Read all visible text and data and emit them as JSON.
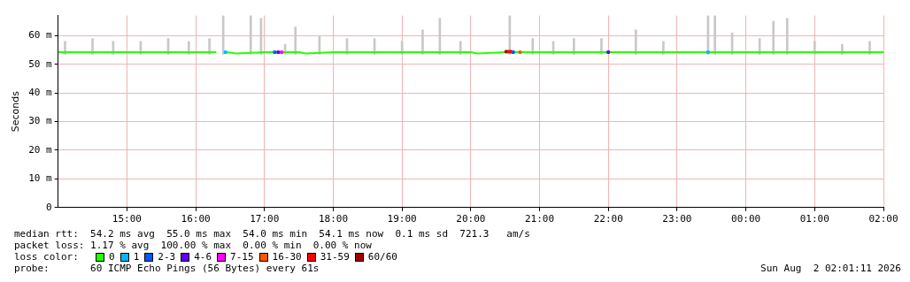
{
  "chart_data": {
    "type": "line",
    "ylabel": "Seconds",
    "xlim": [
      "2026-08-01T14:00",
      "2026-08-02T02:00"
    ],
    "xticks": [
      {
        "value": "2026-08-01T15:00",
        "label": "15:00"
      },
      {
        "value": "2026-08-01T16:00",
        "label": "16:00"
      },
      {
        "value": "2026-08-01T17:00",
        "label": "17:00"
      },
      {
        "value": "2026-08-01T18:00",
        "label": "18:00"
      },
      {
        "value": "2026-08-01T19:00",
        "label": "19:00"
      },
      {
        "value": "2026-08-01T20:00",
        "label": "20:00"
      },
      {
        "value": "2026-08-01T21:00",
        "label": "21:00"
      },
      {
        "value": "2026-08-01T22:00",
        "label": "22:00"
      },
      {
        "value": "2026-08-01T23:00",
        "label": "23:00"
      },
      {
        "value": "2026-08-02T00:00",
        "label": "00:00"
      },
      {
        "value": "2026-08-02T01:00",
        "label": "01:00"
      },
      {
        "value": "2026-08-02T02:00",
        "label": "02:00"
      }
    ],
    "ylim": [
      0,
      67
    ],
    "yticks": [
      0,
      {
        "value": 10,
        "label": "10 m"
      },
      {
        "value": 20,
        "label": "20 m"
      },
      {
        "value": 30,
        "label": "30 m"
      },
      {
        "value": 40,
        "label": "40 m"
      },
      {
        "value": 50,
        "label": "50 m"
      },
      {
        "value": 60,
        "label": "60 m"
      }
    ],
    "grid": true,
    "legend": "bottom",
    "legend_title": "loss color:",
    "annotations": [
      "median rtt:  54.2 ms avg  55.0 ms max  54.0 ms min  54.1 ms now  0.1 ms sd  721.3   am/s",
      "packet loss: 1.17 % avg  100.00 % max  0.00 % min  0.00 % now",
      "probe:       60 ICMP Echo Pings (56 Bytes) every 61s",
      "Sun Aug  2 02:01:11 2026"
    ],
    "series": [
      {
        "type": "bar",
        "color": "#c8c8c8",
        "x": [
          "2026-08-01T14:06",
          "2026-08-01T14:30",
          "2026-08-01T14:48",
          "2026-08-01T15:12",
          "2026-08-01T15:36",
          "2026-08-01T15:54",
          "2026-08-01T16:12",
          "2026-08-01T16:24",
          "2026-08-01T16:48",
          "2026-08-01T16:57",
          "2026-08-01T17:18",
          "2026-08-01T17:27",
          "2026-08-01T17:48",
          "2026-08-01T18:12",
          "2026-08-01T18:36",
          "2026-08-01T19:00",
          "2026-08-01T19:18",
          "2026-08-01T19:33",
          "2026-08-01T19:51",
          "2026-08-01T20:34",
          "2026-08-01T20:54",
          "2026-08-01T21:12",
          "2026-08-01T21:30",
          "2026-08-01T21:54",
          "2026-08-01T22:24",
          "2026-08-01T22:48",
          "2026-08-01T23:27",
          "2026-08-01T23:33",
          "2026-08-01T23:48",
          "2026-08-02T00:12",
          "2026-08-02T00:24",
          "2026-08-02T00:36",
          "2026-08-02T01:00",
          "2026-08-02T01:24",
          "2026-08-02T01:48"
        ],
        "base": [
          53.5,
          53.5,
          53.5,
          53.5,
          53.5,
          53.5,
          53.5,
          53.5,
          53.5,
          53.5,
          53.5,
          53.5,
          53.5,
          53.5,
          53.5,
          53.5,
          53.5,
          53.5,
          53.5,
          53.5,
          53.5,
          53.5,
          53.5,
          53.5,
          53.5,
          53.5,
          53.5,
          53.5,
          53.5,
          53.5,
          53.5,
          53.5,
          53.5,
          53.5,
          53.5
        ],
        "values": [
          4.5,
          5.5,
          4.5,
          4.5,
          5.5,
          4.5,
          5.5,
          13.5,
          13.5,
          12.5,
          3.5,
          9.5,
          6.5,
          5.5,
          5.5,
          4.5,
          8.5,
          12.5,
          4.5,
          13.5,
          5.5,
          4.5,
          5.5,
          5.5,
          8.5,
          4.5,
          13.5,
          13.5,
          7.5,
          5.5,
          11.5,
          12.5,
          4.5,
          3.5,
          4.5
        ]
      },
      {
        "name": "0",
        "marker": "none",
        "color": "#26ff00",
        "x": [
          "2026-08-01T14:00",
          "2026-08-01T14:30",
          "2026-08-01T15:00",
          "2026-08-01T15:30",
          "2026-08-01T16:00",
          "2026-08-01T16:18",
          "2026-08-01T16:21",
          "2026-08-01T16:27",
          "2026-08-01T16:36",
          "2026-08-01T17:00",
          "2026-08-01T17:30",
          "2026-08-01T17:36",
          "2026-08-01T18:00",
          "2026-08-01T18:30",
          "2026-08-01T19:00",
          "2026-08-01T19:30",
          "2026-08-01T20:00",
          "2026-08-01T20:06",
          "2026-08-01T20:30",
          "2026-08-01T21:00",
          "2026-08-01T21:30",
          "2026-08-01T22:00",
          "2026-08-01T22:30",
          "2026-08-01T23:00",
          "2026-08-01T23:30",
          "2026-08-02T00:00",
          "2026-08-02T00:30",
          "2026-08-02T01:00",
          "2026-08-02T01:30",
          "2026-08-02T02:00"
        ],
        "values": [
          54.2,
          54.2,
          54.2,
          54.2,
          54.2,
          54.2,
          null,
          54.2,
          53.8,
          54.2,
          54.2,
          53.8,
          54.2,
          54.2,
          54.2,
          54.2,
          54.2,
          53.8,
          54.2,
          54.2,
          54.2,
          54.2,
          54.2,
          54.2,
          54.2,
          54.2,
          54.2,
          54.2,
          54.2,
          54.2
        ]
      },
      {
        "name": "1",
        "type": "scatter",
        "marker": "square",
        "color": "#00b8ff",
        "x": [
          "2026-08-01T16:26",
          "2026-08-01T23:27"
        ],
        "values": [
          54.2,
          54.2
        ]
      },
      {
        "name": "2-3",
        "type": "scatter",
        "marker": "square",
        "color": "#0059ff",
        "x": [
          "2026-08-01T17:09",
          "2026-08-01T20:37"
        ],
        "values": [
          54.2,
          54.2
        ]
      },
      {
        "name": "4-6",
        "type": "scatter",
        "marker": "square",
        "color": "#5e00ff",
        "x": [
          "2026-08-01T17:12",
          "2026-08-01T22:00"
        ],
        "values": [
          54.2,
          54.2
        ]
      },
      {
        "name": "7-15",
        "type": "scatter",
        "marker": "square",
        "color": "#ff00ff",
        "x": [
          "2026-08-01T17:15"
        ],
        "values": [
          54.2
        ]
      },
      {
        "name": "16-30",
        "type": "scatter",
        "marker": "square",
        "color": "#ff5500",
        "x": [
          "2026-08-01T20:43"
        ],
        "values": [
          54.2
        ]
      },
      {
        "name": "31-59",
        "type": "scatter",
        "marker": "square",
        "color": "#ff0000",
        "x": [
          "2026-08-01T20:33",
          "2026-08-01T20:35"
        ],
        "values": [
          54.4,
          54.4
        ]
      },
      {
        "name": "60/60",
        "type": "scatter",
        "marker": "square",
        "color": "#a10000",
        "x": [
          "2026-08-01T20:31"
        ],
        "values": [
          54.4
        ]
      }
    ]
  }
}
